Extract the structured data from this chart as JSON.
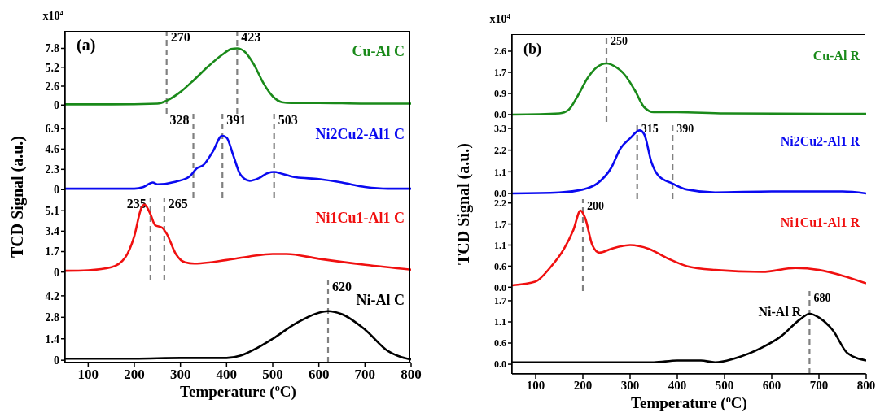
{
  "chart_data": [
    {
      "type": "line",
      "xlim": [
        50,
        800
      ],
      "ylim": [
        -1.2,
        10.2
      ],
      "yticks": [
        0,
        2.6,
        5.2,
        7.8
      ],
      "tick_labels": "y",
      "annotations": [
        "(a)",
        "x10$^{4}$"
      ],
      "series": [
        {
          "name": "Cu-Al C",
          "color": "#1a8a1a",
          "x": [
            50,
            150,
            250,
            270,
            300,
            330,
            360,
            390,
            410,
            423,
            440,
            460,
            480,
            500,
            520,
            540,
            600,
            700,
            800
          ],
          "values": [
            0.1,
            0.1,
            0.2,
            0.6,
            1.8,
            3.5,
            5.3,
            6.9,
            7.7,
            7.8,
            7.3,
            5.5,
            3,
            1.2,
            0.4,
            0.3,
            0.3,
            0.2,
            0.2
          ]
        }
      ],
      "ref_lines": [
        {
          "axis": "x",
          "value": 270,
          "label": "270",
          "color": "#808080",
          "line_style": "dashed"
        },
        {
          "axis": "x",
          "value": 423,
          "label": "423",
          "color": "#808080",
          "line_style": "dashed"
        }
      ]
    },
    {
      "type": "line",
      "xlim": [
        50,
        800
      ],
      "ylim": [
        -0.9,
        8.6
      ],
      "yticks": [
        0,
        2.3,
        4.6,
        6.9
      ],
      "tick_labels": "y",
      "series": [
        {
          "name": "Ni2Cu2-Al1 C",
          "color": "#0a0af0",
          "x": [
            50,
            200,
            220,
            240,
            250,
            290,
            320,
            335,
            350,
            370,
            390,
            400,
            415,
            430,
            450,
            470,
            490,
            503,
            520,
            550,
            600,
            650,
            700,
            750,
            800
          ],
          "values": [
            0.1,
            0.1,
            0.3,
            0.8,
            0.6,
            0.9,
            1.5,
            2.4,
            2.8,
            4.3,
            6.1,
            5.9,
            3.8,
            1.7,
            1.0,
            1.3,
            1.9,
            2.0,
            1.8,
            1.4,
            1.2,
            0.8,
            0.3,
            0.1,
            0.1
          ]
        }
      ],
      "ref_lines": [
        {
          "axis": "x",
          "value": 328,
          "label": "328",
          "color": "#808080",
          "line_style": "dashed"
        },
        {
          "axis": "x",
          "value": 391,
          "label": "391",
          "color": "#808080",
          "line_style": "dashed"
        },
        {
          "axis": "x",
          "value": 503,
          "label": "503",
          "color": "#808080",
          "line_style": "dashed"
        }
      ]
    },
    {
      "type": "line",
      "xlim": [
        50,
        800
      ],
      "ylim": [
        -0.7,
        6.2
      ],
      "yticks": [
        0,
        1.7,
        3.4,
        5.1
      ],
      "tick_labels": "y",
      "series": [
        {
          "name": "Ni1Cu1-Al1 C",
          "color": "#f01010",
          "x": [
            50,
            100,
            150,
            180,
            200,
            215,
            222,
            235,
            245,
            260,
            270,
            290,
            310,
            330,
            400,
            450,
            500,
            530,
            600,
            700,
            800
          ],
          "values": [
            0.1,
            0.15,
            0.4,
            1.2,
            3.0,
            5.3,
            5.6,
            4.8,
            3.9,
            3.7,
            3.2,
            1.5,
            0.8,
            0.7,
            1.0,
            1.3,
            1.5,
            1.5,
            1.1,
            0.6,
            0.2
          ]
        }
      ],
      "ref_lines": [
        {
          "axis": "x",
          "value": 235,
          "label": "235",
          "color": "#808080",
          "line_style": "dashed"
        },
        {
          "axis": "x",
          "value": 265,
          "label": "265",
          "color": "#808080",
          "line_style": "dashed"
        }
      ]
    },
    {
      "type": "line",
      "xlim": [
        50,
        800
      ],
      "xticks": [
        100,
        200,
        300,
        400,
        500,
        600,
        700,
        800
      ],
      "ylim": [
        -0.15,
        5.2
      ],
      "yticks": [
        0,
        1.4,
        2.8,
        4.2
      ],
      "xlabel": "Temperature ($^{o}$C)",
      "ylabel": "TCD Signal (a.u.)",
      "series": [
        {
          "name": "Ni-Al C",
          "color": "#000000",
          "x": [
            50,
            200,
            300,
            400,
            430,
            460,
            500,
            550,
            600,
            620,
            650,
            700,
            750,
            780,
            800
          ],
          "values": [
            0.1,
            0.1,
            0.15,
            0.15,
            0.3,
            0.7,
            1.4,
            2.4,
            3.1,
            3.2,
            3.0,
            2.0,
            0.6,
            0.2,
            0.05
          ]
        }
      ],
      "ref_lines": [
        {
          "axis": "x",
          "value": 620,
          "label": "620",
          "color": "#808080",
          "line_style": "dashed"
        }
      ]
    },
    {
      "type": "line",
      "xlim": [
        50,
        800
      ],
      "ylim": [
        -0.3,
        3.3
      ],
      "yticks": [
        {
          "value": 0,
          "label": "0.0"
        },
        {
          "value": 0.867,
          "label": "0.9"
        },
        {
          "value": 1.733,
          "label": "1.7"
        },
        2.6
      ],
      "tick_labels": "y",
      "annotations": [
        "(b)",
        "x10$^{4}$"
      ],
      "series": [
        {
          "name": "Cu-Al R",
          "color": "#1a8a1a",
          "x": [
            50,
            150,
            170,
            190,
            210,
            230,
            250,
            270,
            290,
            310,
            330,
            350,
            400,
            500,
            800
          ],
          "values": [
            0.0,
            0.05,
            0.2,
            0.8,
            1.5,
            1.95,
            2.1,
            1.95,
            1.6,
            1.0,
            0.3,
            0.1,
            0.1,
            0.05,
            0.03
          ]
        }
      ],
      "ref_lines": [
        {
          "axis": "x",
          "value": 250,
          "label": "250",
          "color": "#808080",
          "line_style": "dashed"
        }
      ]
    },
    {
      "type": "line",
      "xlim": [
        50,
        800
      ],
      "ylim": [
        -0.29,
        3.63
      ],
      "yticks": [
        {
          "value": 0,
          "label": "0.0"
        },
        1.1,
        2.2,
        3.3
      ],
      "tick_labels": "y",
      "series": [
        {
          "name": "Ni2Cu2-Al1 R",
          "color": "#0a0af0",
          "x": [
            50,
            150,
            200,
            230,
            260,
            280,
            300,
            320,
            330,
            345,
            360,
            390,
            420,
            480,
            600,
            700,
            750,
            800
          ],
          "values": [
            0,
            0.05,
            0.2,
            0.5,
            1.3,
            2.3,
            2.8,
            3.2,
            3.0,
            1.6,
            0.9,
            0.5,
            0.2,
            0.05,
            0.1,
            0.1,
            0.1,
            0.0
          ]
        }
      ],
      "ref_lines": [
        {
          "axis": "x",
          "value": 315,
          "label": "315",
          "color": "#808080",
          "line_style": "dashed"
        },
        {
          "axis": "x",
          "value": 390,
          "label": "390",
          "color": "#808080",
          "line_style": "dashed"
        }
      ]
    },
    {
      "type": "line",
      "xlim": [
        50,
        800
      ],
      "ylim": [
        -0.1,
        2.3
      ],
      "yticks": [
        {
          "value": 0,
          "label": "0.0"
        },
        {
          "value": 0.55,
          "label": "0.6"
        },
        {
          "value": 1.1,
          "label": "1.1"
        },
        {
          "value": 1.65,
          "label": "1.7"
        },
        {
          "value": 2.2,
          "label": "2.2"
        }
      ],
      "tick_labels": "y",
      "series": [
        {
          "name": "Ni1Cu1-Al1 R",
          "color": "#f01010",
          "x": [
            50,
            100,
            130,
            160,
            180,
            195,
            205,
            220,
            235,
            260,
            300,
            340,
            380,
            420,
            480,
            580,
            650,
            700,
            750,
            800
          ],
          "values": [
            0.05,
            0.15,
            0.5,
            1.0,
            1.5,
            2.0,
            1.8,
            1.1,
            0.9,
            1.0,
            1.1,
            1.0,
            0.75,
            0.55,
            0.45,
            0.4,
            0.5,
            0.45,
            0.3,
            0.1
          ]
        }
      ],
      "ref_lines": [
        {
          "axis": "x",
          "value": 200,
          "label": "200",
          "color": "#808080",
          "line_style": "dashed"
        }
      ]
    },
    {
      "type": "line",
      "xlim": [
        50,
        800
      ],
      "xticks": [
        100,
        200,
        300,
        400,
        500,
        600,
        700,
        800
      ],
      "ylim": [
        -0.26,
        1.96
      ],
      "yticks": [
        {
          "value": 0,
          "label": "0.0"
        },
        {
          "value": 0.567,
          "label": "0.6"
        },
        {
          "value": 1.133,
          "label": "1.1"
        },
        {
          "value": 1.7,
          "label": "1.7"
        }
      ],
      "xlabel": "Temperature ($^{o}$C)",
      "ylabel": "TCD Signal (a.u.)",
      "series": [
        {
          "name": "Ni-Al R",
          "color": "#000000",
          "x": [
            50,
            200,
            350,
            400,
            450,
            480,
            520,
            580,
            620,
            660,
            680,
            700,
            730,
            760,
            800
          ],
          "values": [
            0.05,
            0.05,
            0.05,
            0.1,
            0.1,
            0.05,
            0.15,
            0.45,
            0.75,
            1.2,
            1.35,
            1.25,
            0.9,
            0.3,
            0.1
          ]
        }
      ],
      "ref_lines": [
        {
          "axis": "x",
          "value": 680,
          "label": "680",
          "color": "#808080",
          "line_style": "dashed"
        }
      ]
    }
  ]
}
